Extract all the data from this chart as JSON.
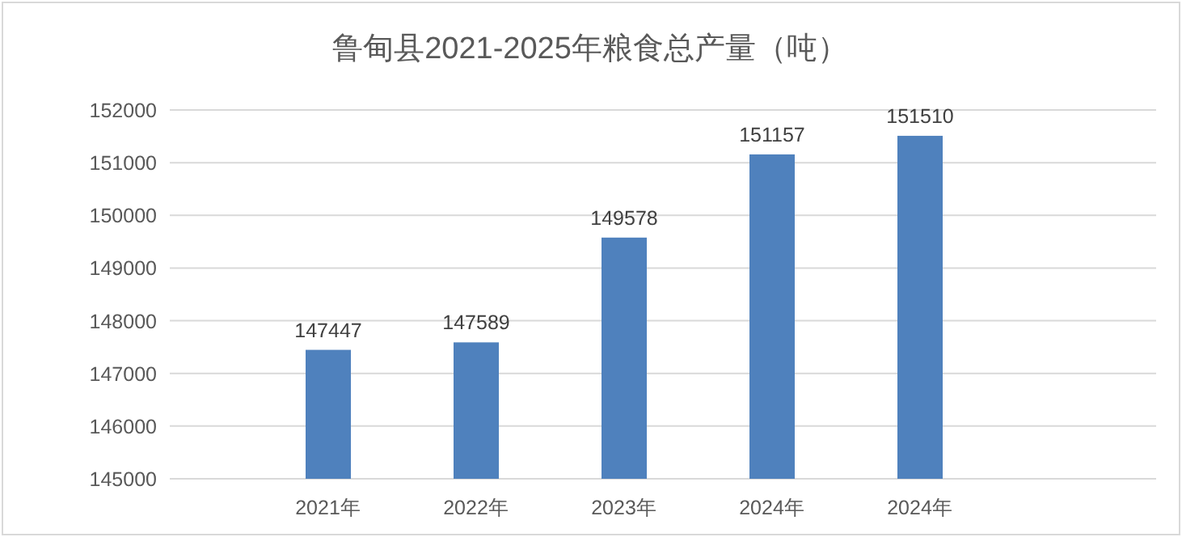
{
  "chart_data": {
    "type": "bar",
    "title": "鲁甸县2021-2025年粮食总产量（吨）",
    "categories": [
      "2021年",
      "2022年",
      "2023年",
      "2024年",
      "2024年"
    ],
    "values": [
      147447,
      147589,
      149578,
      151157,
      151510
    ],
    "color": "#4f81bd",
    "ylim": [
      145000,
      152000
    ],
    "yticks": [
      145000,
      146000,
      147000,
      148000,
      149000,
      150000,
      151000,
      152000
    ],
    "grid": "y",
    "data_labels": true
  }
}
